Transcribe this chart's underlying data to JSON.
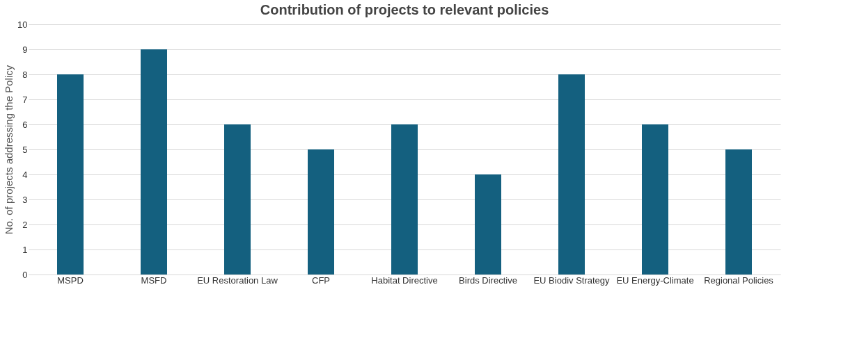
{
  "chart_data": {
    "type": "bar",
    "title": "Contribution of projects to relevant policies",
    "ylabel": "No. of projects addressing the Policy",
    "categories": [
      "MSPD",
      "MSFD",
      "EU Restoration Law",
      "CFP",
      "Habitat Directive",
      "Birds Directive",
      "EU Biodiv Strategy",
      "EU Energy-Climate",
      "Regional Policies"
    ],
    "series": [
      {
        "color": "#14607f",
        "values": [
          8,
          9,
          6,
          5,
          6,
          4,
          8,
          6,
          5
        ]
      }
    ],
    "ylim": [
      0,
      10
    ],
    "yticks": [
      0,
      1,
      2,
      3,
      4,
      5,
      6,
      7,
      8,
      9,
      10
    ],
    "grid": "y"
  }
}
